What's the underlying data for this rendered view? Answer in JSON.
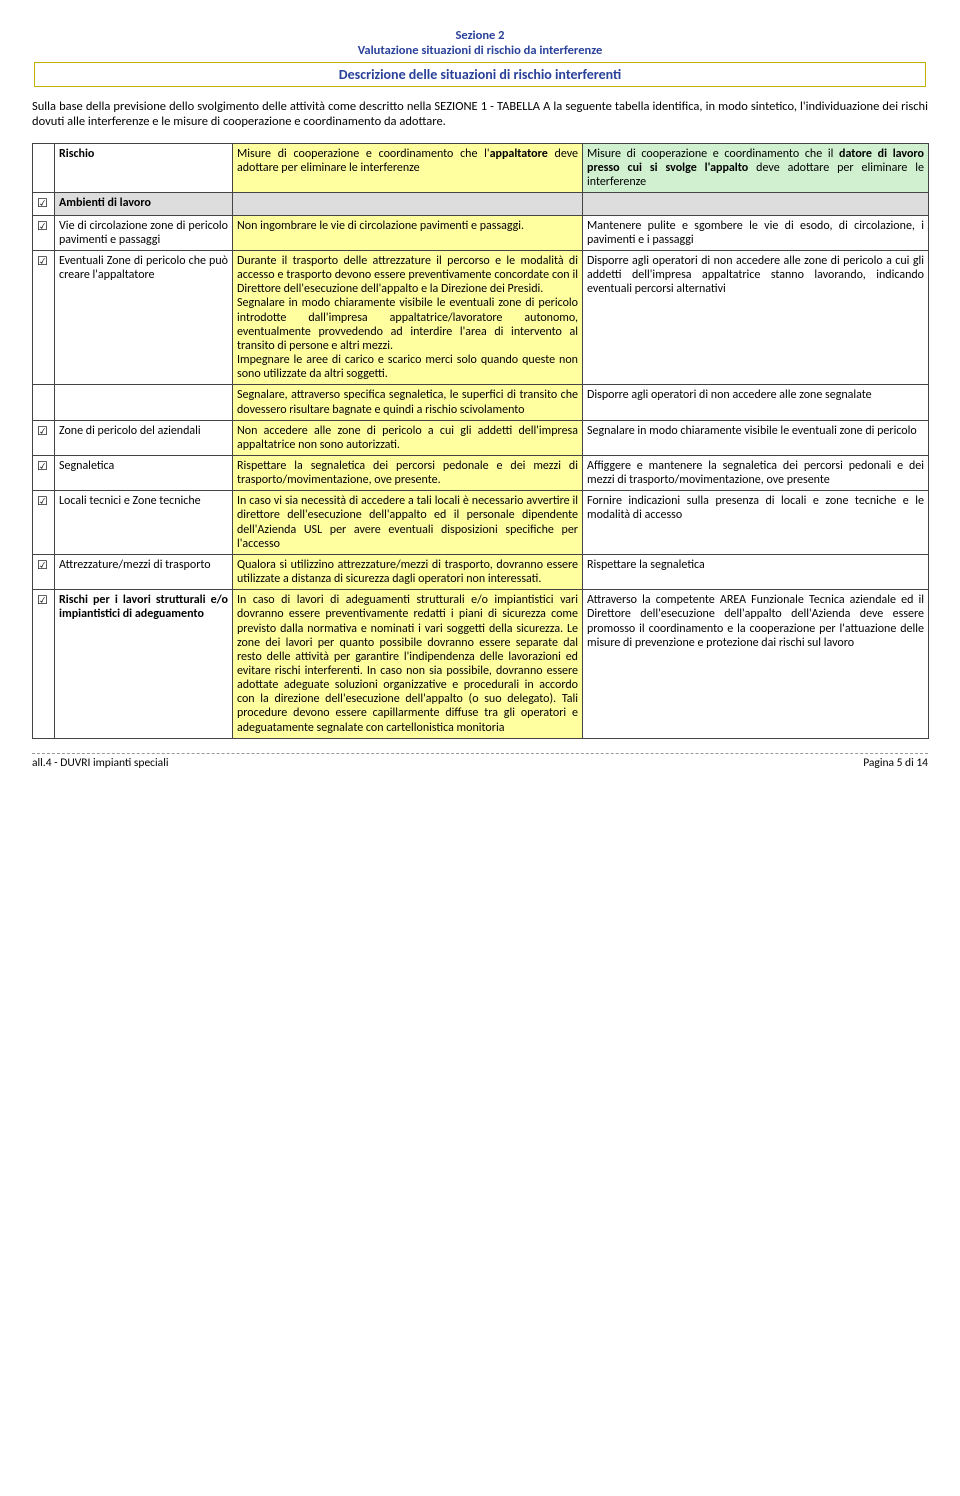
{
  "header": {
    "section_label": "Sezione 2",
    "section_subtitle": "Valutazione situazioni di rischio da interferenze",
    "boxed_title": "Descrizione delle situazioni di rischio interferenti"
  },
  "intro_html": "Sulla base della previsione dello svolgimento delle attività come descritto nella SEZIONE 1 - TABELLA A la seguente tabella identifica, in modo sintetico, l'individuazione dei rischi dovuti alle interferenze e le misure di cooperazione e coordinamento da adottare.",
  "table": {
    "header": {
      "col0": "Rischio",
      "col1_html": "Misure di cooperazione e coordinamento che l'<b>appaltatore</b> deve adottare per eliminare le interferenze",
      "col2_html": "Misure di cooperazione e coordinamento che il <b>datore di lavoro presso cui si svolge l'appalto</b> deve adottare per eliminare le interferenze"
    },
    "rows": [
      {
        "cb": "☑",
        "c0_html": "<b>Ambienti di lavoro</b>",
        "c1": "",
        "c2": "",
        "grey": true
      },
      {
        "cb": "☑",
        "c0": "Vie di circolazione zone di pericolo pavimenti e passaggi",
        "c1": "Non ingombrare le vie di circolazione pavimenti e passaggi.",
        "c2": "Mantenere pulite e sgombere le vie di esodo, di circolazione, i pavimenti e i passaggi"
      },
      {
        "cb": "☑",
        "c0": "Eventuali Zone di pericolo che può creare l'appaltatore",
        "c1": "Durante il trasporto delle attrezzature il percorso e le modalità di accesso e trasporto devono essere preventivamente concordate con il Direttore dell'esecuzione dell'appalto e la Direzione dei Presidi.<br>Segnalare in modo chiaramente visibile le eventuali zone di pericolo introdotte dall'impresa appaltatrice/lavoratore autonomo, eventualmente provvedendo ad interdire l'area di intervento al transito di persone e altri mezzi.<br>Impegnare le aree di carico e scarico merci solo quando queste non sono utilizzate da altri soggetti.",
        "c2": "Disporre agli operatori di non accedere alle zone di pericolo a cui gli addetti dell'impresa appaltatrice stanno lavorando, indicando eventuali percorsi alternativi"
      },
      {
        "cb": "",
        "c0": "",
        "c1": "Segnalare, attraverso specifica segnaletica, le superfici di transito che dovessero risultare bagnate e quindi a rischio scivolamento",
        "c2": "Disporre agli operatori di non accedere alle zone segnalate"
      },
      {
        "cb": "☑",
        "c0": "Zone di pericolo del aziendali",
        "c1": "Non accedere alle zone di pericolo a cui gli addetti dell'impresa appaltatrice non sono autorizzati.",
        "c2": "Segnalare in modo chiaramente visibile le eventuali zone di pericolo"
      },
      {
        "cb": "☑",
        "c0": "Segnaletica",
        "c1": "Rispettare la segnaletica dei percorsi pedonale e dei mezzi di trasporto/movimentazione, ove presente.",
        "c2": "Affiggere e mantenere la segnaletica dei percorsi pedonali e dei mezzi di trasporto/movimentazione, ove presente"
      },
      {
        "cb": "☑",
        "c0": "Locali tecnici e Zone tecniche",
        "c1": "In caso vi sia necessità di accedere a tali locali è necessario avvertire il direttore dell'esecuzione dell'appalto ed il personale dipendente dell'Azienda USL per avere eventuali disposizioni specifiche per l'accesso",
        "c2": "Fornire indicazioni sulla presenza di locali e zone tecniche e le modalità di accesso"
      },
      {
        "cb": "☑",
        "c0": "Attrezzature/mezzi di trasporto",
        "c1": "Qualora si utilizzino attrezzature/mezzi di trasporto, dovranno essere utilizzate a distanza di sicurezza dagli operatori non interessati.",
        "c2": "Rispettare la segnaletica"
      },
      {
        "cb": "☑",
        "c0_html": "<b>Rischi per i lavori strutturali e/o impiantistici di adeguamento</b>",
        "c1": "In caso di lavori di adeguamenti strutturali e/o impiantistici vari dovranno essere preventivamente redatti i piani di sicurezza come previsto dalla normativa e nominati i vari soggetti della sicurezza. Le zone dei lavori per quanto possibile dovranno essere separate dal resto delle attività per garantire l'indipendenza delle lavorazioni ed evitare rischi interferenti. In caso non sia possibile, dovranno essere adottate adeguate soluzioni organizzative e procedurali in accordo con la direzione dell'esecuzione dell'appalto (o suo delegato). Tali procedure devono essere capillarmente diffuse tra gli operatori e adeguatamente segnalate con cartellonistica monitoria",
        "c2": "Attraverso la competente AREA Funzionale Tecnica aziendale ed il Direttore dell'esecuzione dell'appalto dell'Azienda deve essere promosso il coordinamento e la cooperazione per l'attuazione delle misure di prevenzione e protezione dai rischi sul lavoro"
      }
    ]
  },
  "footer": {
    "left": "all.4 - DUVRI impianti speciali",
    "right": "Pagina 5 di 14"
  },
  "colors": {
    "accent_blue": "#2a419a",
    "header_yellow": "#ffffa0",
    "header_green": "#d0f0d0",
    "border_gold": "#c0b000",
    "grey_cell": "#dddddd"
  }
}
